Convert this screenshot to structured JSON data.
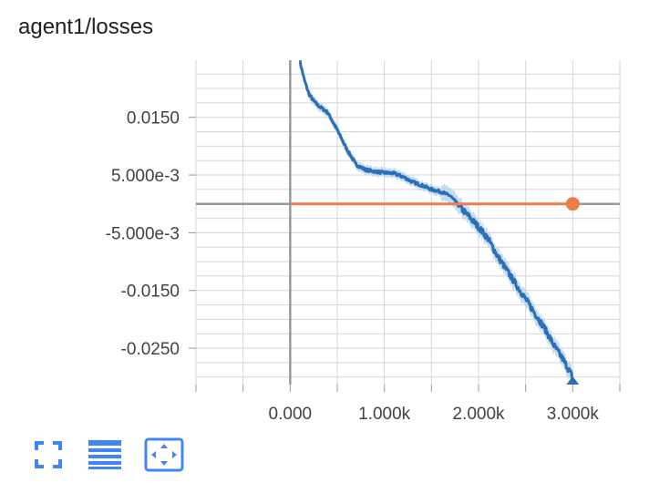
{
  "card": {
    "title": "agent1/losses"
  },
  "colors": {
    "series_main": "#2d6fb5",
    "series_main_band": "#b7d3ef",
    "series_ref": "#f07c4d",
    "grid": "#d5d5d5",
    "axis": "#999999",
    "accent": "#4285f4"
  },
  "toolbar": {
    "icons": [
      "fullscreen-icon",
      "toggle-log-icon",
      "fit-domain-icon"
    ]
  },
  "chart_data": {
    "type": "line",
    "title": "agent1/losses",
    "xlabel": "",
    "ylabel": "",
    "xlim": [
      -1000,
      3500
    ],
    "ylim": [
      -0.0313,
      0.0249
    ],
    "x_ticks": [
      0,
      1000,
      2000,
      3000
    ],
    "x_tick_labels": [
      "0.000",
      "1.000k",
      "2.000k",
      "3.000k"
    ],
    "y_ticks": [
      0.015,
      0.005,
      -0.005,
      -0.015,
      -0.025
    ],
    "y_tick_labels": [
      "0.0150",
      "5.000e-3",
      "-5.000e-3",
      "-0.0150",
      "-0.0250"
    ],
    "grid": true,
    "series": [
      {
        "points": [
          [
            100,
            0.0249
          ],
          [
            150,
            0.0215
          ],
          [
            200,
            0.019
          ],
          [
            250,
            0.0178
          ],
          [
            300,
            0.017
          ],
          [
            400,
            0.0158
          ],
          [
            500,
            0.0128
          ],
          [
            600,
            0.0095
          ],
          [
            700,
            0.0068
          ],
          [
            800,
            0.0059
          ],
          [
            900,
            0.0056
          ],
          [
            1000,
            0.0054
          ],
          [
            1100,
            0.0053
          ],
          [
            1200,
            0.0047
          ],
          [
            1300,
            0.0038
          ],
          [
            1400,
            0.0032
          ],
          [
            1500,
            0.0025
          ],
          [
            1600,
            0.0021
          ],
          [
            1700,
            0.0014
          ],
          [
            1800,
            -0.0005
          ],
          [
            1900,
            -0.0022
          ],
          [
            2000,
            -0.004
          ],
          [
            2100,
            -0.006
          ],
          [
            2200,
            -0.009
          ],
          [
            2300,
            -0.0115
          ],
          [
            2400,
            -0.014
          ],
          [
            2500,
            -0.0165
          ],
          [
            2600,
            -0.019
          ],
          [
            2700,
            -0.0215
          ],
          [
            2800,
            -0.0245
          ],
          [
            2900,
            -0.027
          ],
          [
            3000,
            -0.03
          ]
        ]
      },
      {
        "points": [
          [
            0,
            0.0
          ],
          [
            3000,
            0.0
          ]
        ]
      }
    ]
  }
}
